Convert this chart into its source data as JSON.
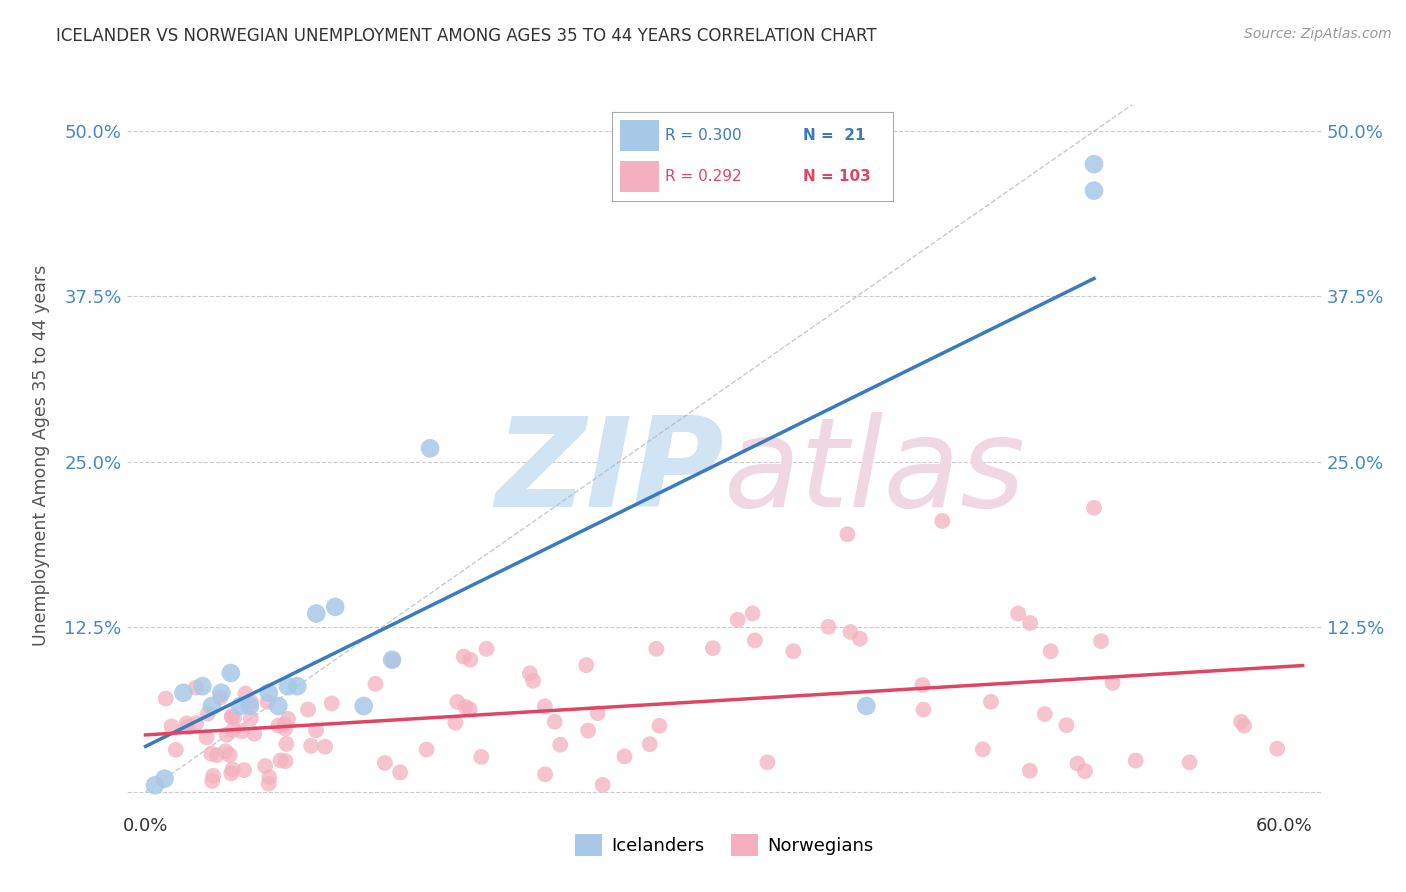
{
  "title": "ICELANDER VS NORWEGIAN UNEMPLOYMENT AMONG AGES 35 TO 44 YEARS CORRELATION CHART",
  "source": "Source: ZipAtlas.com",
  "ylabel": "Unemployment Among Ages 35 to 44 years",
  "color_ice": "#a8c8e8",
  "color_ice_line": "#3a7abf",
  "color_nor": "#f4b0c0",
  "color_nor_line": "#e04565",
  "legend_r_ice": "0.300",
  "legend_n_ice": "21",
  "legend_r_nor": "0.292",
  "legend_n_nor": "103",
  "background": "#ffffff",
  "grid_color": "#cccccc",
  "title_color": "#333333",
  "source_color": "#999999",
  "axis_color": "#555555",
  "tick_color_y": "#4488cc"
}
